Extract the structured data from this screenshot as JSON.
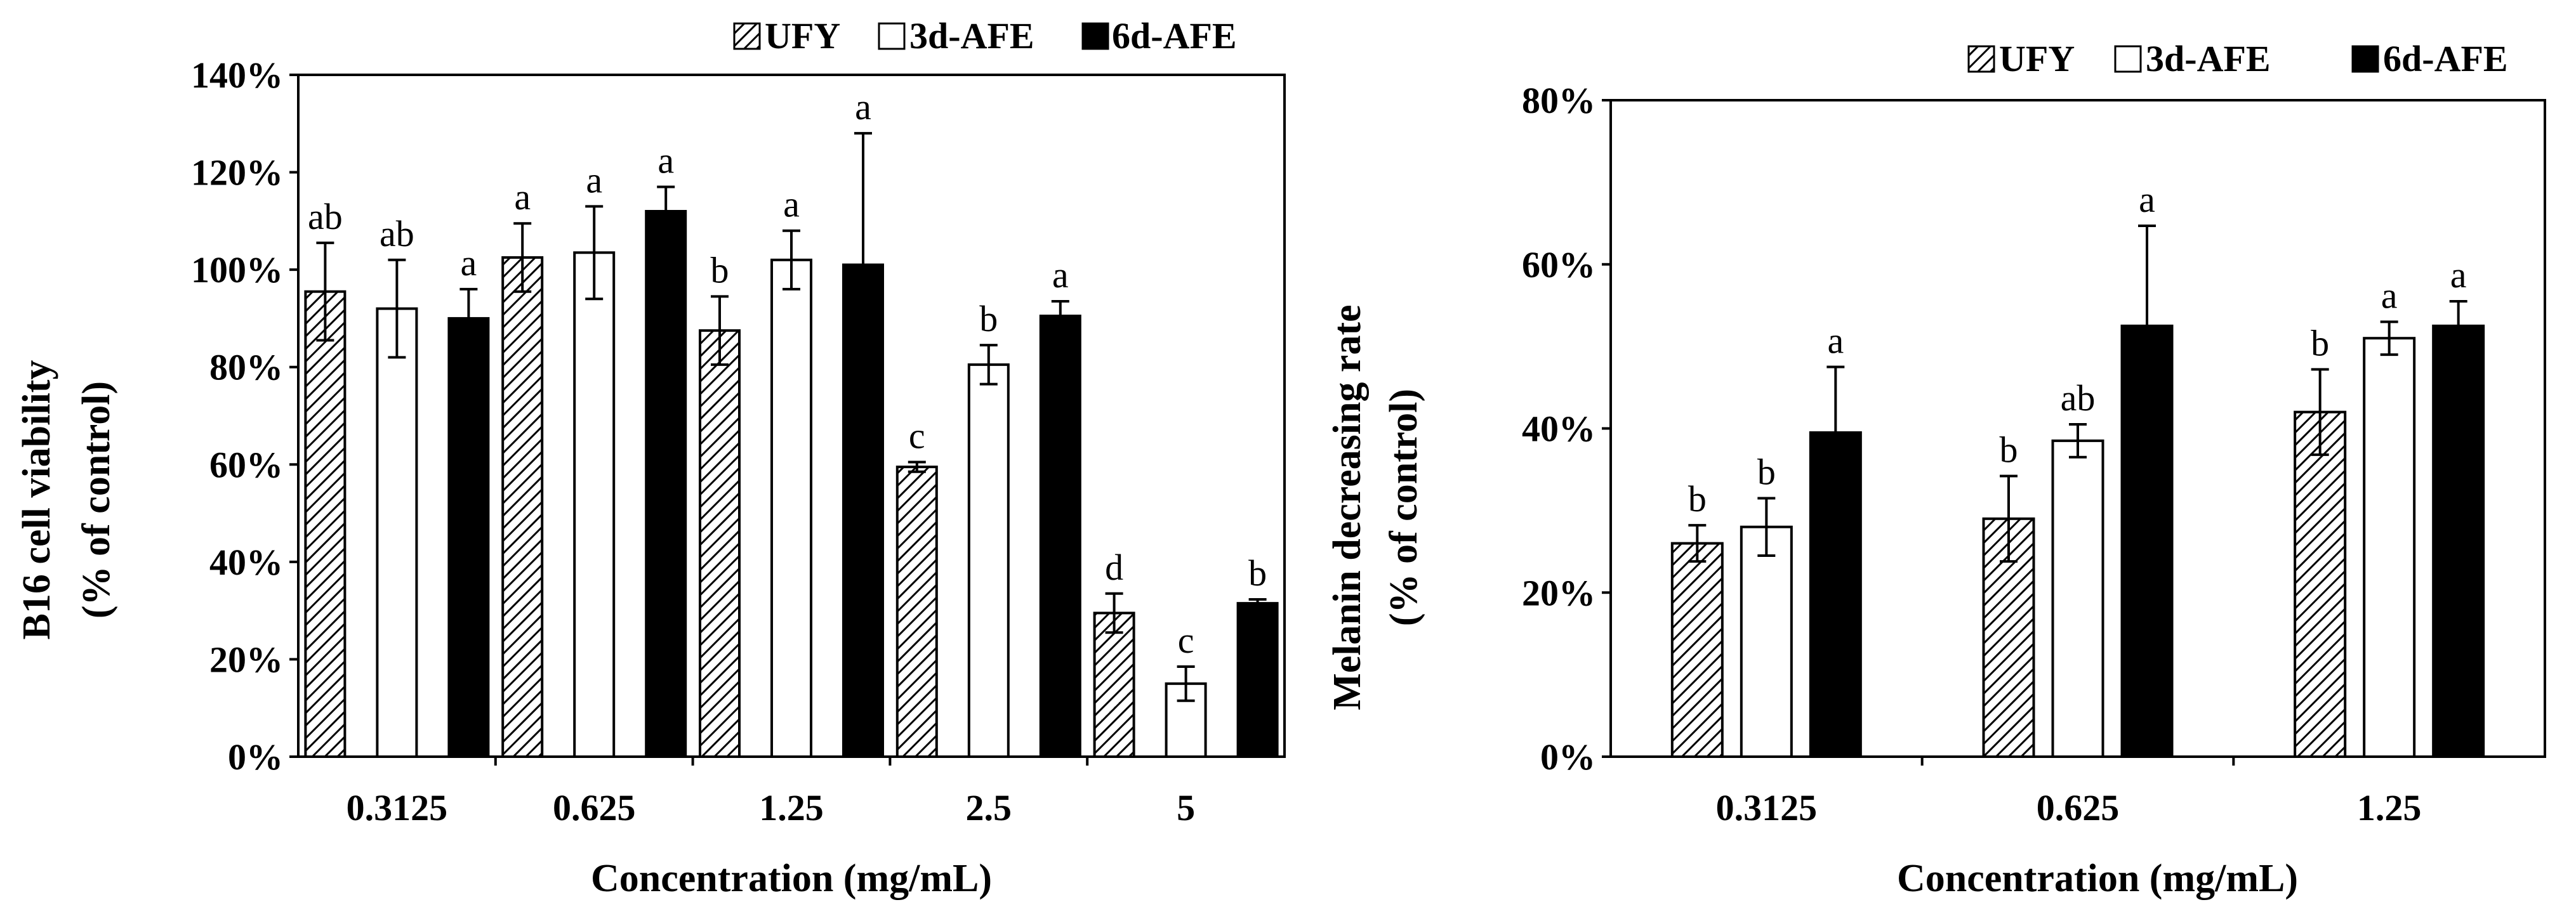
{
  "chart_data": [
    {
      "type": "bar",
      "categories": [
        "0.3125",
        "0.625",
        "1.25",
        "2.5",
        "5"
      ],
      "series": [
        {
          "name": "UFY",
          "pattern": "hatch",
          "values": [
            95.5,
            102.5,
            87.5,
            59.5,
            29.5
          ],
          "errors": [
            10,
            7,
            7,
            1,
            4
          ],
          "letters": [
            "ab",
            "a",
            "b",
            "c",
            "d"
          ]
        },
        {
          "name": "3d-AFE",
          "pattern": "white",
          "values": [
            92,
            103.5,
            102,
            80.5,
            15
          ],
          "errors": [
            10,
            9.5,
            6,
            4,
            3.5
          ],
          "letters": [
            "ab",
            "a",
            "a",
            "b",
            "c"
          ]
        },
        {
          "name": "6d-AFE",
          "pattern": "black",
          "values": [
            90,
            112,
            101,
            90.5,
            31.5
          ],
          "errors": [
            6,
            5,
            27,
            3,
            0.8
          ],
          "letters": [
            "a",
            "a",
            "a",
            "a",
            "b"
          ]
        }
      ],
      "ylim": [
        0,
        140
      ],
      "ytick_step": 20,
      "ytick_format": "percent",
      "xlabel": "Concentration (mg/mL)",
      "ylabel_line1": "B16 cell viability",
      "ylabel_line2": "(% of control)",
      "legend": [
        "UFY",
        "3d-AFE",
        "6d-AFE"
      ],
      "legend_position": "top-right"
    },
    {
      "type": "bar",
      "categories": [
        "0.3125",
        "0.625",
        "1.25"
      ],
      "series": [
        {
          "name": "UFY",
          "pattern": "hatch",
          "values": [
            26,
            29,
            42
          ],
          "errors": [
            2.2,
            5.2,
            5.2
          ],
          "letters": [
            "b",
            "b",
            "b"
          ]
        },
        {
          "name": "3d-AFE",
          "pattern": "white",
          "values": [
            28,
            38.5,
            51
          ],
          "errors": [
            3.5,
            2,
            2
          ],
          "letters": [
            "b",
            "ab",
            "a"
          ]
        },
        {
          "name": "6d-AFE",
          "pattern": "black",
          "values": [
            39.5,
            52.5,
            52.5
          ],
          "errors": [
            8,
            12.2,
            3
          ],
          "letters": [
            "a",
            "a",
            "a"
          ]
        }
      ],
      "ylim": [
        0,
        80
      ],
      "ytick_step": 20,
      "ytick_format": "percent",
      "xlabel": "Concentration (mg/mL)",
      "ylabel_line1": "Melanin decreasing rate",
      "ylabel_line2": "(% of control)",
      "legend": [
        "UFY",
        "3d-AFE",
        "6d-AFE"
      ],
      "legend_position": "top-right"
    }
  ],
  "colors": {
    "black": "#000000",
    "white": "#ffffff",
    "hatch_bg": "#ffffff",
    "hatch_line": "#000000"
  }
}
